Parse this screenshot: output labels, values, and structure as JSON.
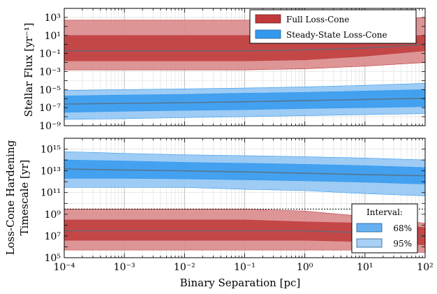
{
  "chart_data": [
    {
      "type": "area",
      "x_scale": "log",
      "y_scale": "log",
      "xlim": [
        0.0001,
        100
      ],
      "ylim": [
        1e-09,
        10000.0
      ],
      "ylabel": "Stellar Flux [yr⁻¹]",
      "ytick_labels": [
        {
          "value": 1000,
          "label": "10³"
        },
        {
          "value": 10,
          "label": "10¹"
        },
        {
          "value": 0.1,
          "label": "10⁻¹"
        },
        {
          "value": 0.001,
          "label": "10⁻³"
        },
        {
          "value": 1e-05,
          "label": "10⁻⁵"
        },
        {
          "value": 1e-07,
          "label": "10⁻⁷"
        },
        {
          "value": 1e-09,
          "label": "10⁻⁹"
        }
      ],
      "legend_position": "top-right",
      "grid": true,
      "series": [
        {
          "name": "Full Loss-Cone",
          "color": "#c0393b",
          "color_light": "#d98a8b",
          "x": [
            0.0001,
            0.001,
            0.01,
            0.1,
            1,
            10,
            100
          ],
          "p2_5": [
            0.0015,
            0.0015,
            0.0015,
            0.0015,
            0.002,
            0.004,
            0.01
          ],
          "p16": [
            0.015,
            0.015,
            0.015,
            0.015,
            0.02,
            0.05,
            0.2
          ],
          "median": [
            0.2,
            0.2,
            0.2,
            0.2,
            0.25,
            0.4,
            1.0
          ],
          "p84": [
            10,
            10,
            10,
            10,
            10,
            10,
            10
          ],
          "p97_5": [
            500,
            500,
            500,
            500,
            500,
            500,
            1000
          ]
        },
        {
          "name": "Steady-State Loss-Cone",
          "color": "#3399ee",
          "color_light": "#94c6f3",
          "x": [
            0.0001,
            0.001,
            0.01,
            0.1,
            1,
            10,
            100
          ],
          "p2_5": [
            5e-09,
            6e-09,
            8e-09,
            1e-08,
            1.3e-08,
            1.7e-08,
            2.2e-08
          ],
          "p16": [
            3e-08,
            4e-08,
            5e-08,
            6e-08,
            8e-08,
            1e-07,
            1.3e-07
          ],
          "median": [
            2.5e-07,
            3e-07,
            3.5e-07,
            4.5e-07,
            6e-07,
            8e-07,
            1.1e-06
          ],
          "p84": [
            2e-06,
            2.5e-06,
            3e-06,
            4e-06,
            5e-06,
            7e-06,
            1e-05
          ],
          "p97_5": [
            8e-06,
            1e-05,
            1.2e-05,
            1.5e-05,
            2e-05,
            3e-05,
            5e-05
          ]
        }
      ]
    },
    {
      "type": "area",
      "x_scale": "log",
      "y_scale": "log",
      "xlim": [
        0.0001,
        100
      ],
      "ylim": [
        100000.0,
        1e+16
      ],
      "xlabel": "Binary Separation [pc]",
      "ylabel_lines": [
        "Loss-Cone Hardening",
        "Timescale [yr]"
      ],
      "xtick_labels": [
        {
          "value": 0.0001,
          "label": "10⁻⁴"
        },
        {
          "value": 0.001,
          "label": "10⁻³"
        },
        {
          "value": 0.01,
          "label": "10⁻²"
        },
        {
          "value": 0.1,
          "label": "10⁻¹"
        },
        {
          "value": 1,
          "label": "10⁰"
        },
        {
          "value": 10,
          "label": "10¹"
        },
        {
          "value": 100,
          "label": "10²"
        }
      ],
      "ytick_labels": [
        {
          "value": 1000000000000000.0,
          "label": "10¹⁵"
        },
        {
          "value": 10000000000000.0,
          "label": "10¹³"
        },
        {
          "value": 100000000000.0,
          "label": "10¹¹"
        },
        {
          "value": 1000000000.0,
          "label": "10⁹"
        },
        {
          "value": 10000000.0,
          "label": "10⁷"
        },
        {
          "value": 100000.0,
          "label": "10⁵"
        }
      ],
      "reference_line_y": 3000000000.0,
      "legend_position": "lower-right",
      "legend_title": "Interval:",
      "legend_entries": [
        {
          "label": "68%",
          "color": "#66b0f0"
        },
        {
          "label": "95%",
          "color": "#a8d0f5"
        }
      ],
      "grid": true,
      "series": [
        {
          "name": "Full Loss-Cone",
          "color": "#c0393b",
          "color_light": "#d98a8b",
          "x": [
            0.0001,
            0.001,
            0.01,
            0.1,
            1,
            10,
            100
          ],
          "p2_5": [
            500000.0,
            500000.0,
            500000.0,
            500000.0,
            500000.0,
            500000.0,
            300000.0
          ],
          "p16": [
            4000000.0,
            4000000.0,
            4000000.0,
            4000000.0,
            4000000.0,
            3000000.0,
            1500000.0
          ],
          "median": [
            30000000.0,
            30000000.0,
            30000000.0,
            30000000.0,
            30000000.0,
            20000000.0,
            10000000.0
          ],
          "p84": [
            300000000.0,
            300000000.0,
            300000000.0,
            300000000.0,
            200000000.0,
            150000000.0,
            60000000.0
          ],
          "p97_5": [
            3000000000.0,
            3000000000.0,
            3000000000.0,
            3000000000.0,
            2000000000.0,
            600000000.0,
            150000000.0
          ]
        },
        {
          "name": "Steady-State Loss-Cone",
          "color": "#3399ee",
          "color_light": "#94c6f3",
          "x": [
            0.0001,
            0.001,
            0.01,
            0.1,
            1,
            10,
            100
          ],
          "p2_5": [
            300000000000.0,
            300000000000.0,
            300000000000.0,
            200000000000.0,
            150000000000.0,
            80000000000.0,
            50000000000.0
          ],
          "p16": [
            2000000000000.0,
            2000000000000.0,
            1800000000000.0,
            1500000000000.0,
            1200000000000.0,
            900000000000.0,
            600000000000.0
          ],
          "median": [
            15000000000000.0,
            12000000000000.0,
            10000000000000.0,
            8000000000000.0,
            6000000000000.0,
            4500000000000.0,
            3500000000000.0
          ],
          "p84": [
            100000000000000.0,
            80000000000000.0,
            60000000000000.0,
            50000000000000.0,
            40000000000000.0,
            30000000000000.0,
            20000000000000.0
          ],
          "p97_5": [
            600000000000000.0,
            400000000000000.0,
            300000000000000.0,
            250000000000000.0,
            200000000000000.0,
            150000000000000.0,
            100000000000000.0
          ]
        }
      ]
    }
  ],
  "legend_top": {
    "entries": [
      {
        "label": "Full Loss-Cone",
        "color": "#c0393b"
      },
      {
        "label": "Steady-State Loss-Cone",
        "color": "#3399ee"
      }
    ]
  }
}
